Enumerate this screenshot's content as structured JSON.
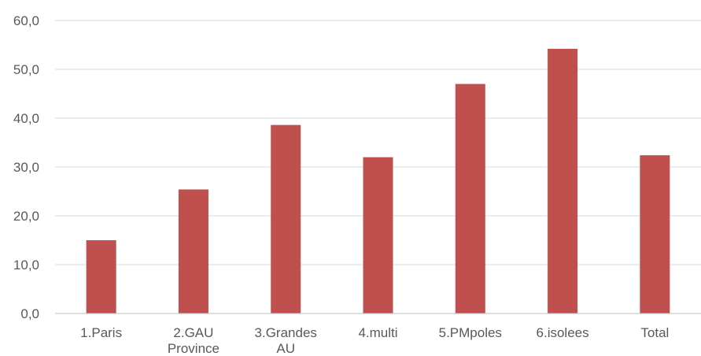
{
  "chart_data": {
    "type": "bar",
    "title": "",
    "xlabel": "",
    "ylabel": "",
    "categories": [
      [
        "1.Paris"
      ],
      [
        "2.GAU",
        "Province"
      ],
      [
        "3.Grandes",
        "AU"
      ],
      [
        "4.multi"
      ],
      [
        "5.PMpoles"
      ],
      [
        "6.isolees"
      ],
      [
        "Total"
      ]
    ],
    "values": [
      15.0,
      25.4,
      38.6,
      32.0,
      47.0,
      54.2,
      32.4
    ],
    "ylim": [
      0,
      60
    ],
    "yticks": [
      "0,0",
      "10,0",
      "20,0",
      "30,0",
      "40,0",
      "50,0",
      "60,0"
    ],
    "grid": true,
    "legend": "none",
    "bar_color": "#c0504d"
  }
}
